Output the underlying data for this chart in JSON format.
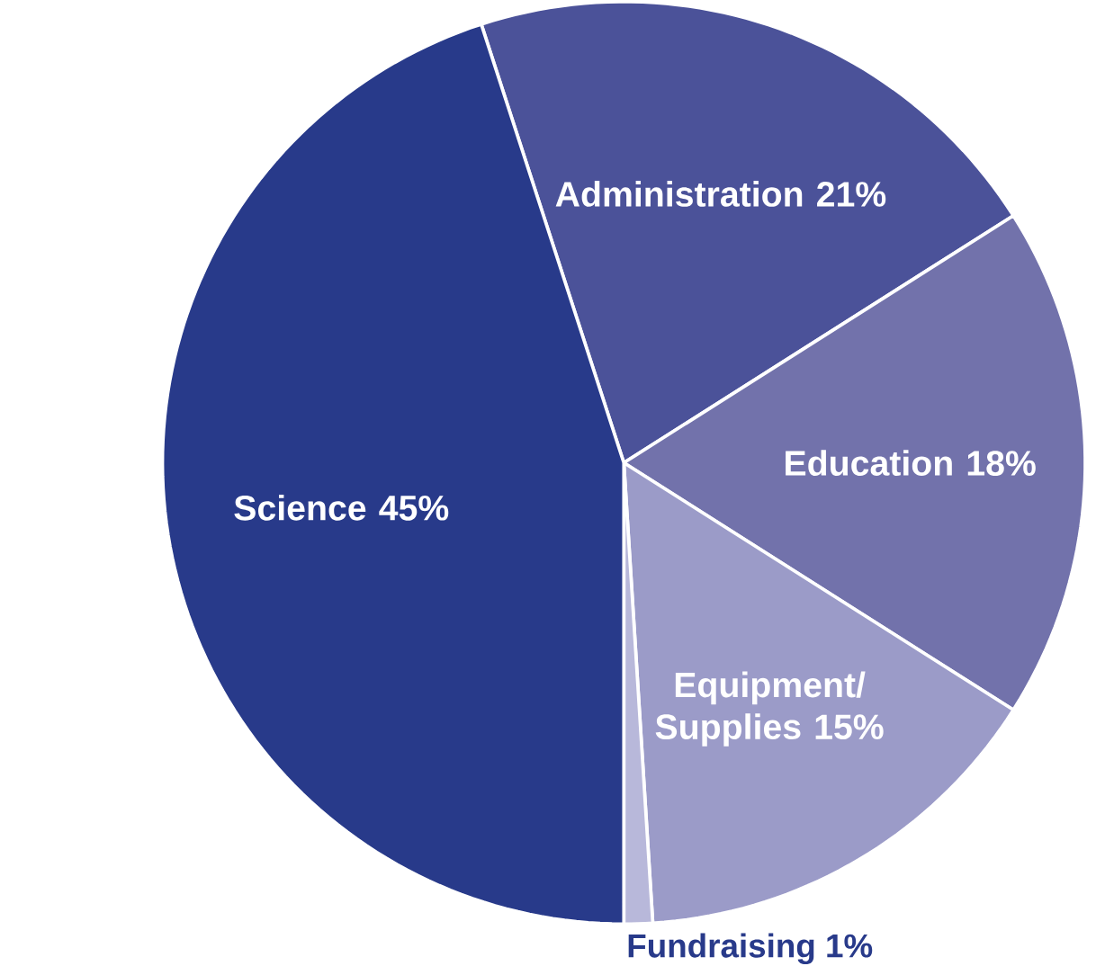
{
  "chart_data": {
    "type": "pie",
    "categories": [
      "Administration",
      "Education",
      "Equipment/ Supplies",
      "Fundraising",
      "Science"
    ],
    "values": [
      21,
      18,
      15,
      1,
      45
    ],
    "value_labels": [
      "21%",
      "18%",
      "15%",
      "1%",
      "45%"
    ],
    "colors": [
      "#4b5299",
      "#7272ab",
      "#9b9bc8",
      "#b8b8da",
      "#283a8a"
    ]
  }
}
